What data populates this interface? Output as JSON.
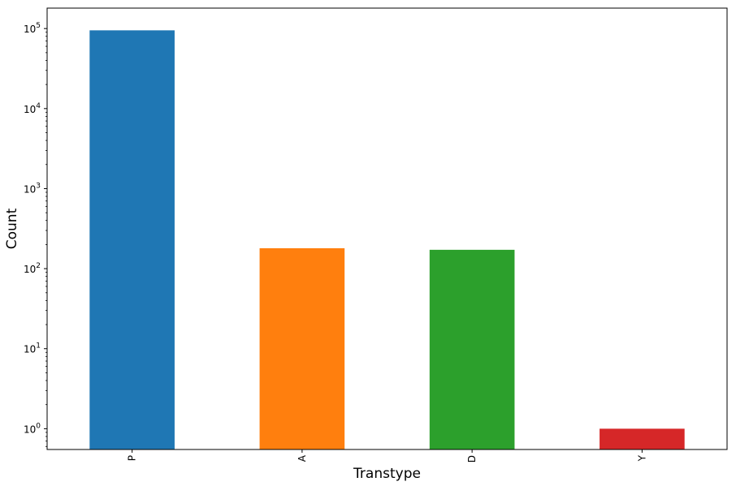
{
  "chart_data": {
    "type": "bar",
    "xlabel": "Transtype",
    "ylabel": "Count",
    "yscale": "log",
    "ylim": [
      0.55,
      180000
    ],
    "yticks": [
      {
        "value": 1,
        "base": "10",
        "exp": "0"
      },
      {
        "value": 10,
        "base": "10",
        "exp": "1"
      },
      {
        "value": 100,
        "base": "10",
        "exp": "2"
      },
      {
        "value": 1000,
        "base": "10",
        "exp": "3"
      },
      {
        "value": 10000,
        "base": "10",
        "exp": "4"
      },
      {
        "value": 100000,
        "base": "10",
        "exp": "5"
      }
    ],
    "categories": [
      "P",
      "A",
      "D",
      "Y"
    ],
    "values": [
      95000,
      180,
      172,
      1
    ],
    "colors": [
      "#1f77b4",
      "#ff7f0e",
      "#2ca02c",
      "#d62728"
    ],
    "grid": false,
    "legend": false
  }
}
